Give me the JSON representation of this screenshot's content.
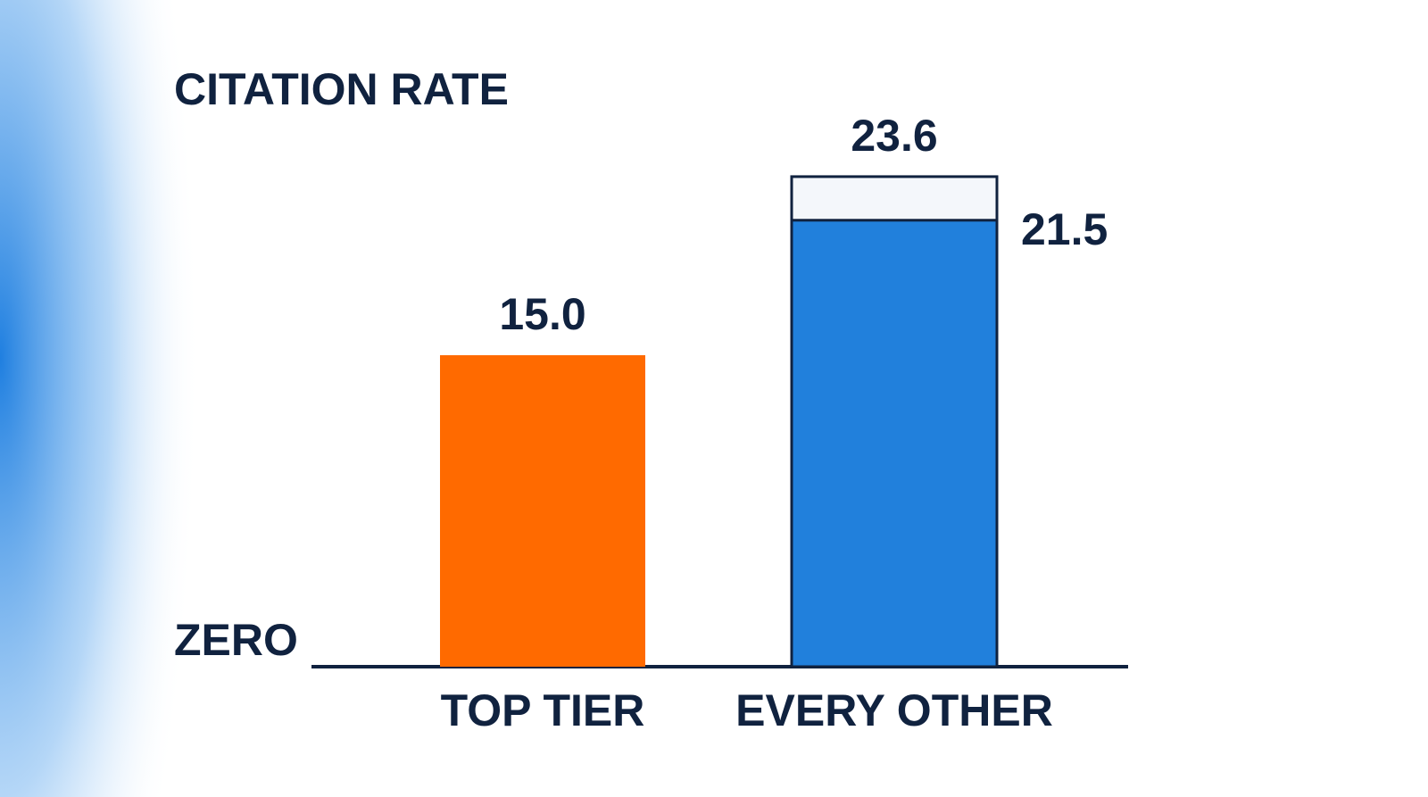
{
  "chart_data": {
    "type": "bar",
    "title": "CITATION RATE",
    "categories": [
      "TOP TIER",
      "EVERY OTHER"
    ],
    "series": [
      {
        "values": [
          15.0,
          21.5
        ],
        "value_labels": [
          "15.0",
          "21.5"
        ],
        "colors": [
          "#ff6a00",
          "#2180dc"
        ]
      },
      {
        "values": [
          null,
          23.6
        ],
        "color": "#f4f7fb"
      }
    ],
    "ylim": [
      0,
      30
    ],
    "yticks": [
      {
        "value": 0,
        "label": "ZERO"
      }
    ],
    "grid": false
  }
}
